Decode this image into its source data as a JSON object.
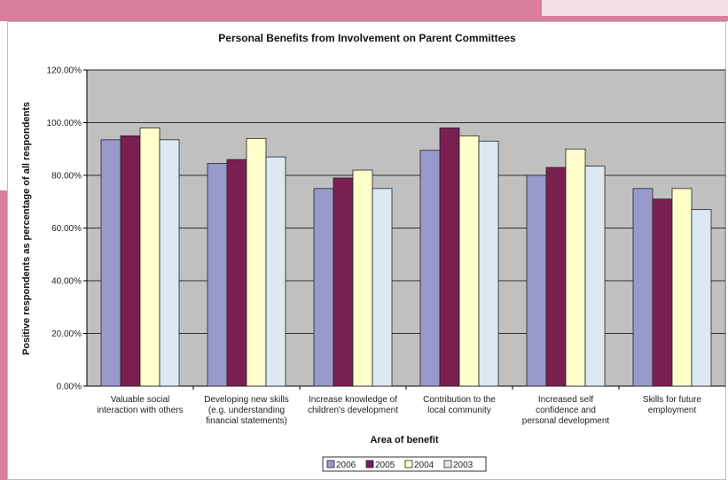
{
  "chart_data": {
    "type": "bar",
    "title": "Personal Benefits from Involvement on Parent Committees",
    "xlabel": "Area of benefit",
    "ylabel": "Positive respondents as percentage of all respondents",
    "ylim": [
      0,
      120
    ],
    "yticks": [
      "0.00%",
      "20.00%",
      "40.00%",
      "60.00%",
      "80.00%",
      "100.00%",
      "120.00%"
    ],
    "grid": true,
    "legend_position": "bottom",
    "categories": [
      [
        "Valuable social",
        "interaction with others"
      ],
      [
        "Developing new skills",
        "(e.g. understanding",
        "financial statements)"
      ],
      [
        "Increase knowledge of",
        "children's development"
      ],
      [
        "Contribution to the",
        "local community"
      ],
      [
        "Increased self",
        "confidence and",
        "personal development"
      ],
      [
        "Skills for future",
        "employment"
      ]
    ],
    "series": [
      {
        "name": "2006",
        "color": "#9999cc",
        "values": [
          93.5,
          84.5,
          75,
          89.5,
          80,
          75
        ]
      },
      {
        "name": "2005",
        "color": "#7a2050",
        "values": [
          95,
          86,
          79,
          98,
          83,
          71
        ]
      },
      {
        "name": "2004",
        "color": "#ffffcc",
        "values": [
          98,
          94,
          82,
          95,
          90,
          75
        ]
      },
      {
        "name": "2003",
        "color": "#dde9f2",
        "values": [
          93.5,
          87,
          75,
          93,
          83.5,
          67
        ]
      }
    ],
    "plot_background": "#c0c0c0"
  }
}
